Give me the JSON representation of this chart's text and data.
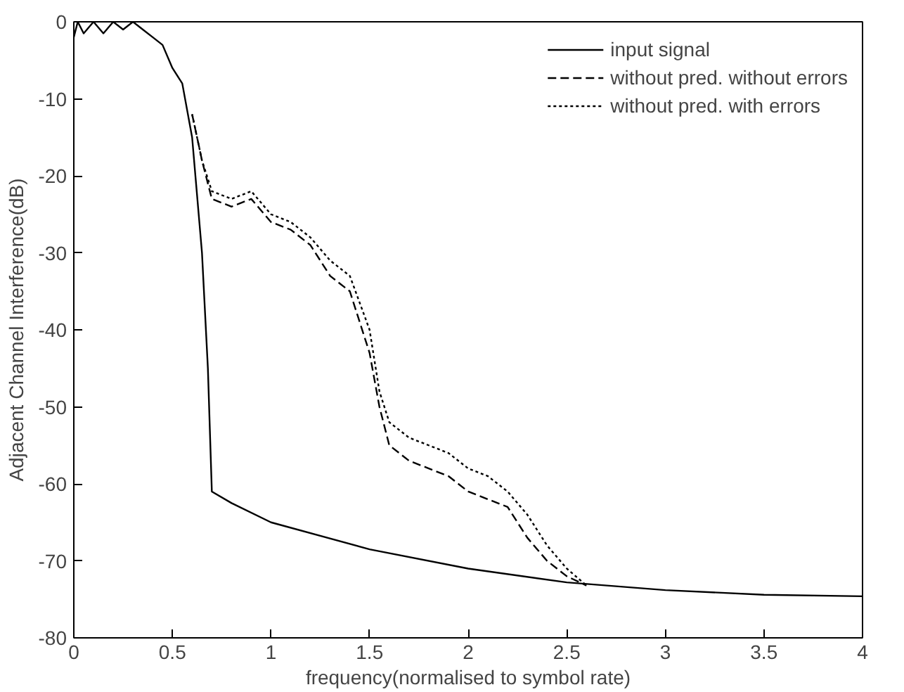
{
  "chart_data": {
    "type": "line",
    "xlabel": "frequency(normalised to symbol rate)",
    "ylabel": "Adjacent Channel Interference(dB)",
    "xlim": [
      0,
      4
    ],
    "ylim": [
      -80,
      0
    ],
    "xticks": [
      0,
      0.5,
      1,
      1.5,
      2,
      2.5,
      3,
      3.5,
      4
    ],
    "yticks": [
      0,
      -10,
      -20,
      -30,
      -40,
      -50,
      -60,
      -70,
      -80
    ],
    "grid": false,
    "legend": "top right",
    "series": [
      {
        "name": "input signal",
        "color": "#000000",
        "line_style": "solid",
        "x": [
          0,
          0.02,
          0.05,
          0.1,
          0.15,
          0.2,
          0.25,
          0.3,
          0.35,
          0.4,
          0.45,
          0.5,
          0.55,
          0.6,
          0.65,
          0.68,
          0.7,
          0.8,
          1,
          1.5,
          2,
          2.5,
          3,
          3.5,
          4
        ],
        "values": [
          -2,
          0,
          -1.5,
          0,
          -1.5,
          0,
          -1,
          0,
          -1,
          -2,
          -3,
          -6,
          -8,
          -15,
          -30,
          -45,
          -61,
          -62.5,
          -65,
          -68.5,
          -71,
          -72.8,
          -73.8,
          -74.4,
          -74.6
        ]
      },
      {
        "name": "without pred. without errors",
        "color": "#000000",
        "line_style": "dashed",
        "x": [
          0.6,
          0.65,
          0.7,
          0.8,
          0.9,
          1.0,
          1.1,
          1.2,
          1.3,
          1.4,
          1.5,
          1.55,
          1.6,
          1.7,
          1.8,
          1.9,
          2.0,
          2.1,
          2.2,
          2.3,
          2.4,
          2.5,
          2.6
        ],
        "values": [
          -12,
          -18,
          -23,
          -24,
          -23,
          -26,
          -27,
          -29,
          -33,
          -35,
          -43,
          -50,
          -55,
          -57,
          -58,
          -59,
          -61,
          -62,
          -63,
          -67,
          -70,
          -72,
          -73.2
        ]
      },
      {
        "name": "without pred. with errors",
        "color": "#000000",
        "line_style": "dotted",
        "x": [
          0.6,
          0.65,
          0.7,
          0.8,
          0.9,
          1.0,
          1.1,
          1.2,
          1.3,
          1.4,
          1.5,
          1.55,
          1.6,
          1.7,
          1.8,
          1.9,
          2.0,
          2.1,
          2.2,
          2.3,
          2.4,
          2.5,
          2.6
        ],
        "values": [
          -12,
          -18,
          -22,
          -23,
          -22,
          -25,
          -26,
          -28,
          -31,
          -33,
          -40,
          -48,
          -52,
          -54,
          -55,
          -56,
          -58,
          -59,
          -61,
          -64,
          -68,
          -71,
          -73.2
        ]
      }
    ]
  }
}
